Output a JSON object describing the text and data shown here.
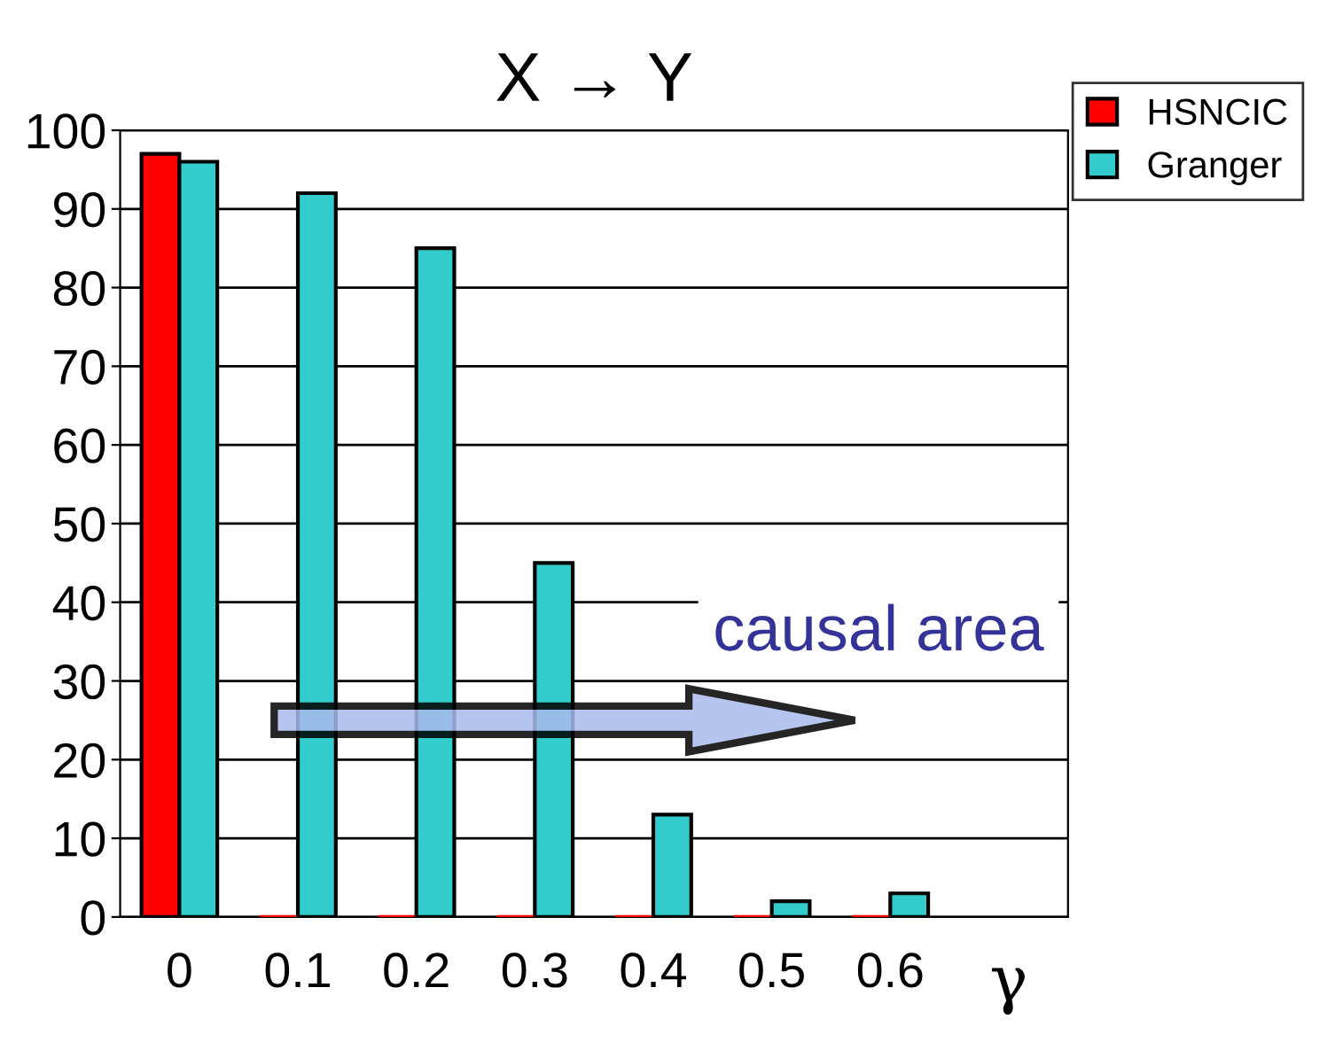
{
  "chart_data": {
    "type": "bar",
    "title": "X → Y",
    "xlabel": "γ",
    "categories": [
      "0",
      "0.1",
      "0.2",
      "0.3",
      "0.4",
      "0.5",
      "0.6"
    ],
    "series": [
      {
        "name": "HSNCIC",
        "color": "#ff0000",
        "values": [
          97,
          0,
          0,
          0,
          0,
          0,
          0
        ]
      },
      {
        "name": "Granger",
        "color": "#33cccc",
        "values": [
          96,
          92,
          85,
          45,
          13,
          2,
          3
        ]
      }
    ],
    "ylim": [
      0,
      100
    ],
    "yticks": [
      0,
      10,
      20,
      30,
      40,
      50,
      60,
      70,
      80,
      90,
      100
    ],
    "grid": "y",
    "legend": "top right",
    "annotations": [
      "causal area"
    ]
  }
}
